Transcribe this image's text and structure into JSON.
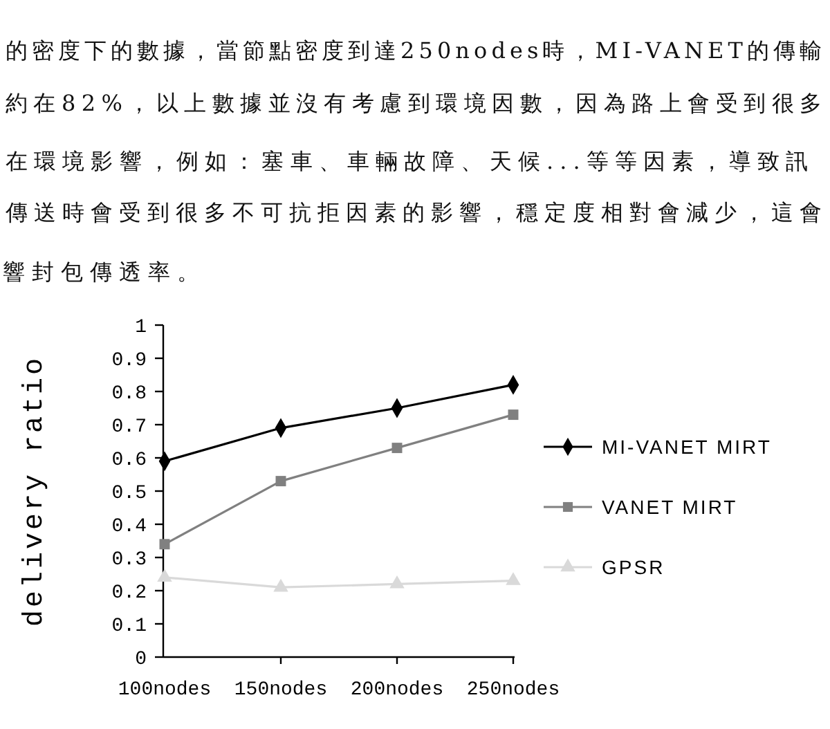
{
  "chart_data": {
    "type": "line",
    "annotations": [
      "的密度下的數據，當節點密度到達250nodes時，MI-VANET的傳輸",
      "約在82%，以上數據並沒有考慮到環境因數，因為路上會受到很多",
      "在環境影響，例如：塞車、車輛故障、天候...等等因素，導致訊",
      "傳送時會受到很多不可抗拒因素的影響，穩定度相對會減少，這會",
      "響封包傳透率。"
    ],
    "ylabel": "delivery ratio",
    "categories": [
      "100nodes",
      "150nodes",
      "200nodes",
      "250nodes"
    ],
    "series": [
      {
        "name": "MI-VANET MIRT",
        "color": "#000000",
        "marker": "diamond",
        "values": [
          0.59,
          0.69,
          0.75,
          0.82
        ]
      },
      {
        "name": "VANET MIRT",
        "color": "#808080",
        "marker": "square",
        "values": [
          0.34,
          0.53,
          0.63,
          0.73
        ]
      },
      {
        "name": "GPSR",
        "color": "#d9d9d9",
        "marker": "triangle",
        "values": [
          0.24,
          0.21,
          0.22,
          0.23
        ]
      }
    ],
    "ylim": [
      0,
      1
    ],
    "yticks": [
      0,
      0.1,
      0.2,
      0.3,
      0.4,
      0.5,
      0.6,
      0.7,
      0.8,
      0.9,
      1
    ],
    "legend": "right"
  }
}
